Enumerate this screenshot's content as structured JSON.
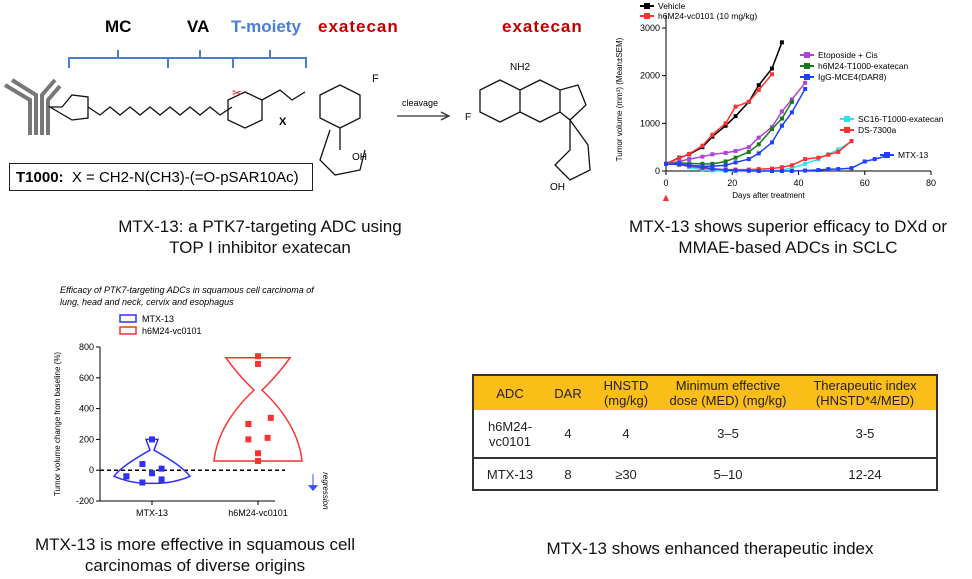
{
  "linker": {
    "mc": "MC",
    "va": "VA",
    "tmoiety": "T-moiety",
    "exatecan": "exatecan",
    "cleavage": "cleavage",
    "payload": "exatecan",
    "x_label": "X",
    "nh2": "NH2",
    "oh": "OH",
    "f": "F"
  },
  "t1000": {
    "name": "T1000:",
    "formula": "X = CH2-N(CH3)-(=O-pSAR10Ac)"
  },
  "captions": {
    "top_left": "MTX-13: a PTK7-targeting ADC using TOP I inhibitor exatecan",
    "top_right": "MTX-13 shows superior efficacy to DXd or MMAE-based ADCs in SCLC",
    "bottom_left": "MTX-13 is more effective in squamous cell carcinomas of diverse origins",
    "bottom_right": "MTX-13 shows enhanced therapeutic index"
  },
  "colors": {
    "blue": "#4a7fd0",
    "red": "#c00000",
    "orange": "#fbbd18"
  },
  "chart_data": [
    {
      "type": "line",
      "xlabel": "Days after treatment",
      "ylabel": "Tumor volume (mm³) (Mean±SEM)",
      "xlim": [
        0,
        80
      ],
      "ylim": [
        0,
        3000
      ],
      "xticks": [
        0,
        20,
        40,
        60,
        80
      ],
      "yticks": [
        0,
        1000,
        2000,
        3000
      ],
      "series": [
        {
          "name": "Vehicle",
          "color": "#000000",
          "x": [
            0,
            4,
            7,
            11,
            14,
            18,
            21,
            25,
            28,
            32,
            35
          ],
          "y": [
            150,
            280,
            350,
            500,
            720,
            950,
            1150,
            1450,
            1800,
            2150,
            2700
          ]
        },
        {
          "name": "h6M24-vc0101 (10 mg/kg)",
          "color": "#ff3030",
          "x": [
            0,
            4,
            7,
            11,
            14,
            18,
            21,
            25,
            28,
            32
          ],
          "y": [
            150,
            270,
            360,
            530,
            760,
            1000,
            1350,
            1450,
            1700,
            2030
          ]
        },
        {
          "name": "Etoposide + Cis",
          "color": "#b040e0",
          "x": [
            0,
            4,
            7,
            11,
            14,
            18,
            21,
            25,
            28,
            32,
            35,
            38,
            42
          ],
          "y": [
            150,
            200,
            250,
            300,
            350,
            380,
            420,
            500,
            700,
            920,
            1250,
            1500,
            1850
          ]
        },
        {
          "name": "h6M24-T1000-exatecan",
          "color": "#1a7a1a",
          "x": [
            0,
            4,
            7,
            11,
            14,
            18,
            21,
            25,
            28,
            32,
            35,
            38
          ],
          "y": [
            150,
            170,
            160,
            150,
            150,
            200,
            280,
            400,
            560,
            880,
            1100,
            1450
          ]
        },
        {
          "name": "IgG-MCE4(DAR8)",
          "color": "#2040ff",
          "x": [
            0,
            4,
            7,
            11,
            14,
            18,
            21,
            25,
            28,
            32,
            35,
            38,
            42
          ],
          "y": [
            150,
            150,
            120,
            100,
            100,
            120,
            180,
            250,
            370,
            600,
            950,
            1230,
            1720
          ]
        },
        {
          "name": "SC16-T1000-exatecan",
          "color": "#30e0f0",
          "x": [
            0,
            4,
            7,
            11,
            14,
            18,
            21,
            25,
            28,
            32,
            35,
            38,
            42,
            46,
            49,
            52,
            56
          ],
          "y": [
            150,
            140,
            80,
            20,
            10,
            0,
            0,
            0,
            0,
            0,
            20,
            60,
            150,
            250,
            350,
            450,
            620
          ]
        },
        {
          "name": "DS-7300a",
          "color": "#ff3030",
          "x": [
            0,
            4,
            7,
            11,
            14,
            18,
            21,
            25,
            28,
            32,
            35,
            38,
            42,
            46,
            49,
            52,
            56
          ],
          "y": [
            150,
            130,
            100,
            60,
            40,
            30,
            30,
            30,
            40,
            50,
            80,
            120,
            250,
            280,
            340,
            400,
            630
          ]
        },
        {
          "name": "MTX-13",
          "color": "#2040ff",
          "x": [
            0,
            4,
            7,
            11,
            14,
            18,
            21,
            25,
            28,
            32,
            35,
            38,
            42,
            46,
            49,
            52,
            56,
            60,
            63,
            67
          ],
          "y": [
            150,
            140,
            120,
            80,
            50,
            20,
            10,
            5,
            0,
            0,
            0,
            0,
            10,
            20,
            40,
            40,
            60,
            200,
            250,
            320
          ]
        }
      ]
    },
    {
      "type": "scatter",
      "title": "Efficacy of PTK7-targeting ADCs in squamous cell carcinoma of lung, head and neck, cervix and esophagus",
      "ylabel": "Tumor volume change from baseline (%)",
      "ylim": [
        -200,
        800
      ],
      "yticks": [
        -200,
        0,
        200,
        400,
        600,
        800
      ],
      "categories": [
        "MTX-13",
        "h6M24-vc0101"
      ],
      "annotation": "regression",
      "series": [
        {
          "name": "MTX-13",
          "color": "#3030ff",
          "values": [
            200,
            40,
            -40,
            -20,
            10,
            -40,
            -80,
            -60
          ]
        },
        {
          "name": "h6M24-vc0101",
          "color": "#ff3030",
          "values": [
            740,
            690,
            340,
            300,
            210,
            200,
            110,
            60
          ]
        }
      ]
    }
  ],
  "table": {
    "headers": [
      "ADC",
      "DAR",
      "HNSTD (mg/kg)",
      "Minimum effective dose (MED) (mg/kg)",
      "Therapeutic index (HNSTD*4/MED)"
    ],
    "rows": [
      [
        "h6M24-vc0101",
        "4",
        "4",
        "3–5",
        "3-5"
      ],
      [
        "MTX-13",
        "8",
        "≥30",
        "5–10",
        "12-24"
      ]
    ]
  }
}
